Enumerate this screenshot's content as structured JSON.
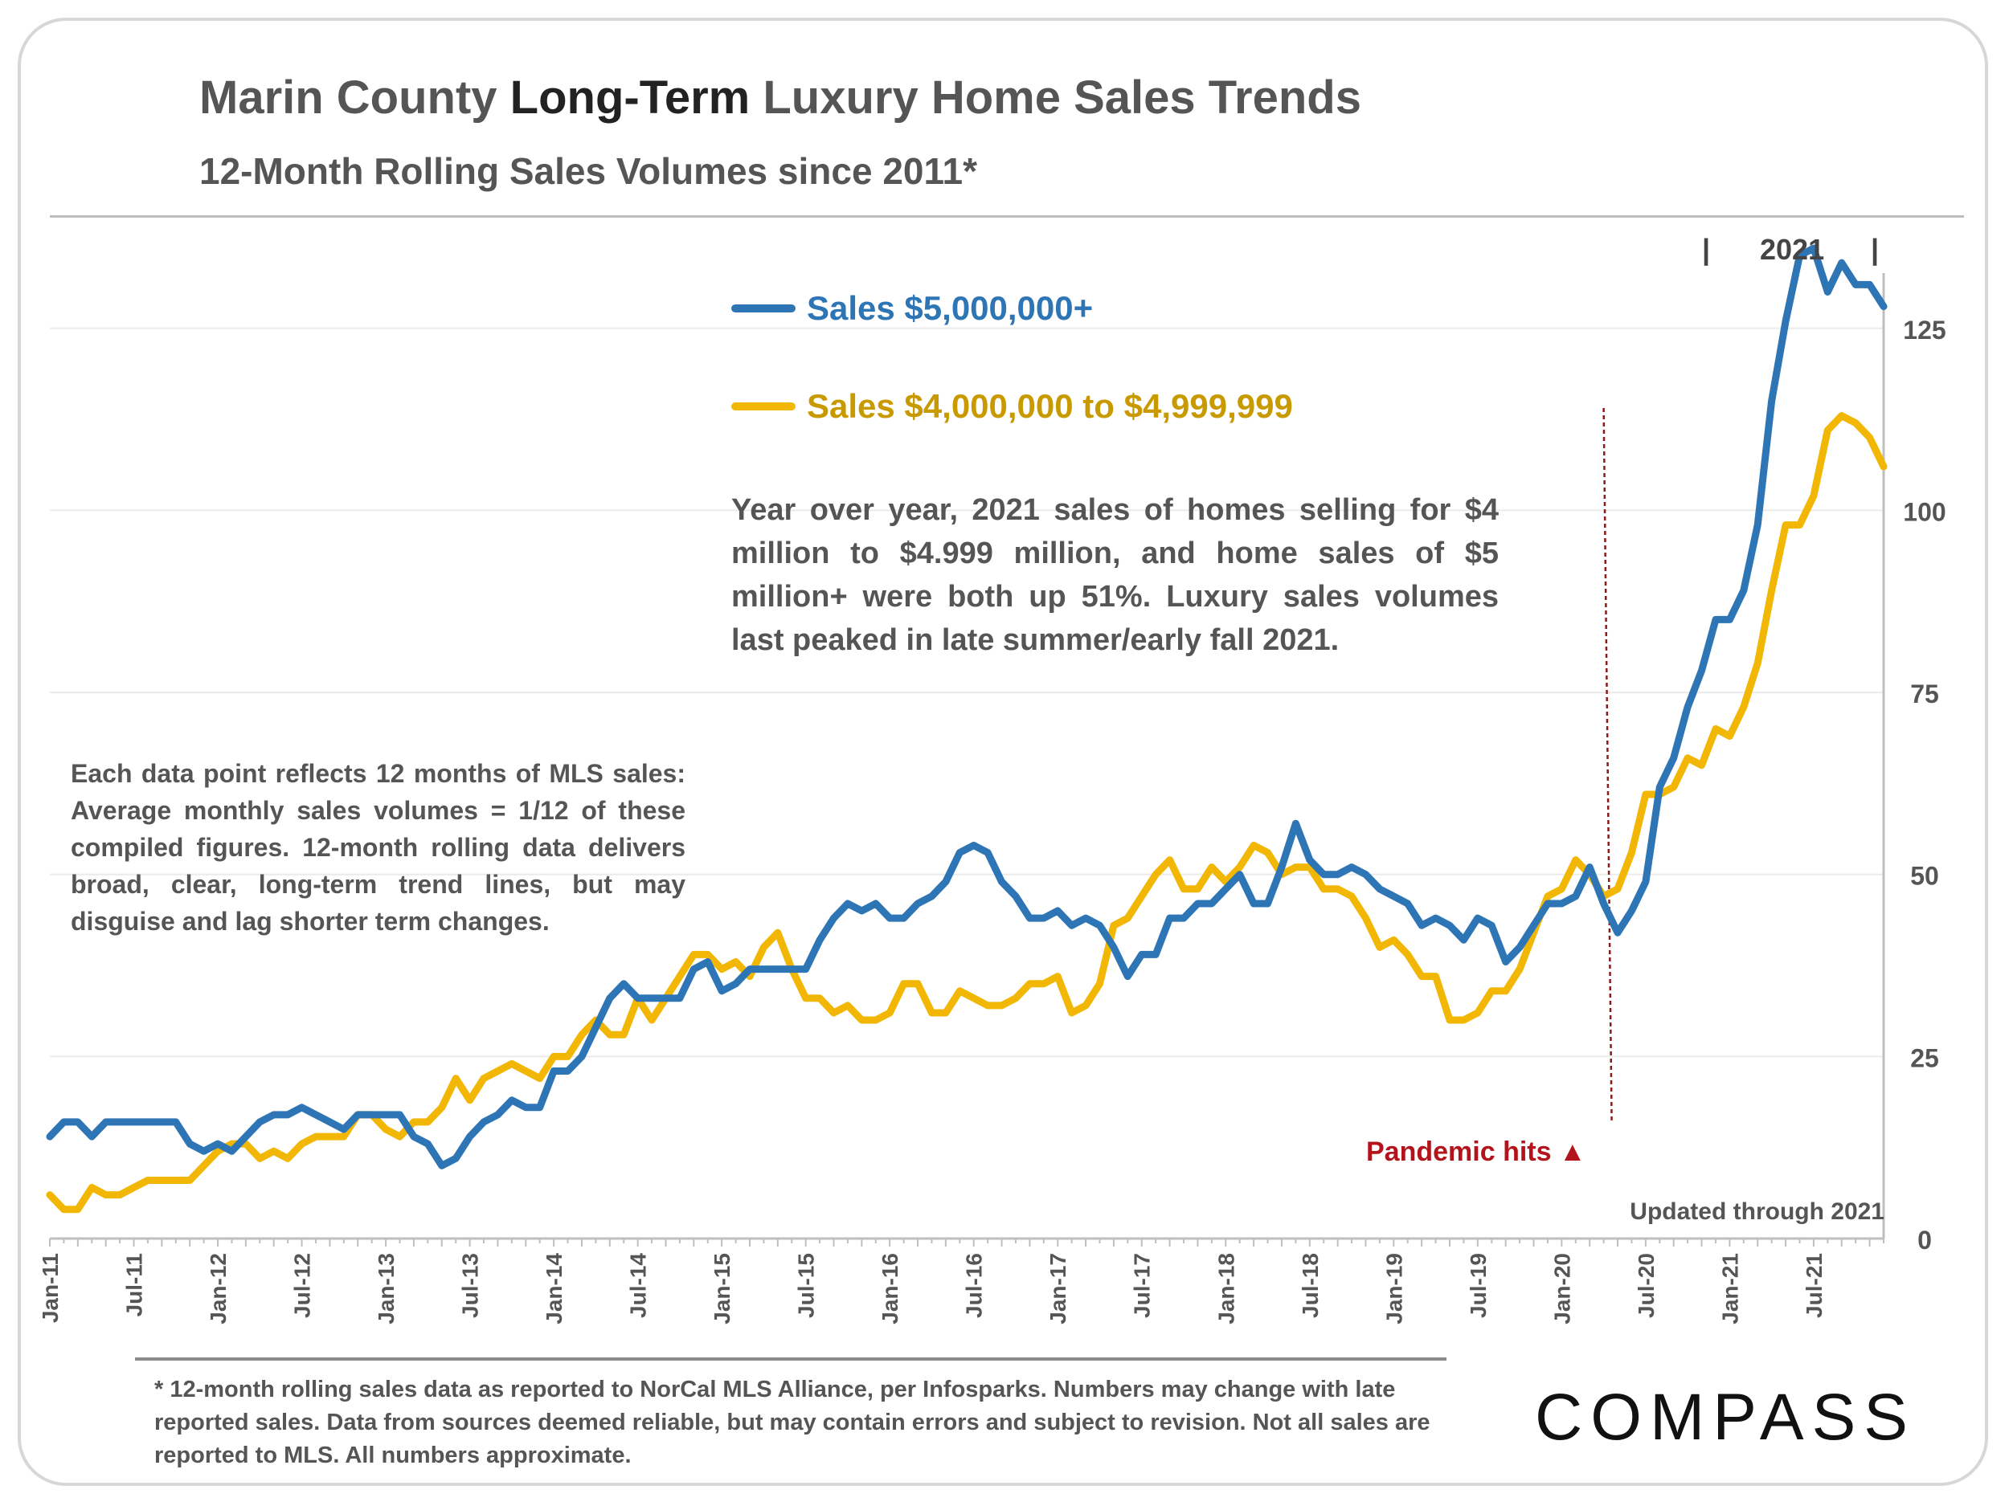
{
  "header": {
    "title_part1": "Marin County ",
    "title_bold": "Long-Term",
    "title_part2": " Luxury Home Sales Trends",
    "subtitle": "12-Month Rolling Sales Volumes since 2011*"
  },
  "annotations": {
    "main": "Year over year, 2021 sales of homes selling for $4 million to $4.999 million, and home sales of $5 million+ were both up 51%. Luxury sales volumes last peaked in late summer/early fall 2021.",
    "note": "Each data point reflects 12 months of MLS sales:  Average monthly sales volumes = 1/12 of these compiled figures. 12-month rolling data delivers broad, clear, long-term trend lines, but may disguise and lag shorter term changes.",
    "pandemic": "Pandemic hits ▲",
    "updated": "Updated through 2021",
    "year_bracket_label": "2021",
    "year_bracket_left": "|",
    "year_bracket_right": "|"
  },
  "footer": {
    "footnote": "* 12-month rolling sales data as reported to NorCal MLS Alliance, per Infosparks. Numbers may change with late reported sales. Data from sources deemed reliable, but may contain errors and subject to revision. Not all sales are reported to MLS. All numbers approximate.",
    "logo": "COMPASS"
  },
  "colors": {
    "series_5m": "#2e75b6",
    "series_4m": "#f2b705",
    "series_4m_label": "#c99a00",
    "pandemic": "#b3141c",
    "gridline": "#ebebeb"
  },
  "chart_data": {
    "type": "line",
    "x_start": "2011-01",
    "x_end": "2021-12",
    "x_tick_labels": [
      "Jan-11",
      "Jul-11",
      "Jan-12",
      "Jul-12",
      "Jan-13",
      "Jul-13",
      "Jan-14",
      "Jul-14",
      "Jan-15",
      "Jul-15",
      "Jan-16",
      "Jul-16",
      "Jan-17",
      "Jul-17",
      "Jan-18",
      "Jul-18",
      "Jan-19",
      "Jul-19",
      "Jan-20",
      "Jul-20",
      "Jan-21",
      "Jul-21"
    ],
    "y_ticks": [
      0,
      25,
      50,
      75,
      100,
      125
    ],
    "ylim": [
      0,
      137
    ],
    "y_axis_position": "right",
    "pandemic_marker": "2020-04",
    "legend_position": "top-center",
    "series": [
      {
        "name": "Sales $5,000,000+",
        "color": "#2e75b6",
        "values": [
          14,
          16,
          16,
          14,
          16,
          16,
          16,
          16,
          16,
          16,
          13,
          12,
          13,
          12,
          14,
          16,
          17,
          17,
          18,
          17,
          16,
          15,
          17,
          17,
          17,
          17,
          14,
          13,
          10,
          11,
          14,
          16,
          17,
          19,
          18,
          18,
          23,
          23,
          25,
          29,
          33,
          35,
          33,
          33,
          33,
          33,
          37,
          38,
          34,
          35,
          37,
          37,
          37,
          37,
          37,
          41,
          44,
          46,
          45,
          46,
          44,
          44,
          46,
          47,
          49,
          53,
          54,
          53,
          49,
          47,
          44,
          44,
          45,
          43,
          44,
          43,
          40,
          36,
          39,
          39,
          44,
          44,
          46,
          46,
          48,
          50,
          46,
          46,
          51,
          57,
          52,
          50,
          50,
          51,
          50,
          48,
          47,
          46,
          43,
          44,
          43,
          41,
          44,
          43,
          38,
          40,
          43,
          46,
          46,
          47,
          51,
          46,
          42,
          45,
          49,
          62,
          66,
          73,
          78,
          85,
          85,
          89,
          98,
          115,
          126,
          135,
          136,
          130,
          134,
          131,
          131,
          128
        ]
      },
      {
        "name": "Sales $4,000,000 to $4,999,999",
        "color": "#f2b705",
        "values": [
          6,
          4,
          4,
          7,
          6,
          6,
          7,
          8,
          8,
          8,
          8,
          10,
          12,
          13,
          13,
          11,
          12,
          11,
          13,
          14,
          14,
          14,
          17,
          17,
          15,
          14,
          16,
          16,
          18,
          22,
          19,
          22,
          23,
          24,
          23,
          22,
          25,
          25,
          28,
          30,
          28,
          28,
          33,
          30,
          33,
          36,
          39,
          39,
          37,
          38,
          36,
          40,
          42,
          37,
          33,
          33,
          31,
          32,
          30,
          30,
          31,
          35,
          35,
          31,
          31,
          34,
          33,
          32,
          32,
          33,
          35,
          35,
          36,
          31,
          32,
          35,
          43,
          44,
          47,
          50,
          52,
          48,
          48,
          51,
          49,
          51,
          54,
          53,
          50,
          51,
          51,
          48,
          48,
          47,
          44,
          40,
          41,
          39,
          36,
          36,
          30,
          30,
          31,
          34,
          34,
          37,
          42,
          47,
          48,
          52,
          50,
          47,
          48,
          53,
          61,
          61,
          62,
          66,
          65,
          70,
          69,
          73,
          79,
          89,
          98,
          98,
          102,
          111,
          113,
          112,
          110,
          106
        ]
      }
    ]
  }
}
